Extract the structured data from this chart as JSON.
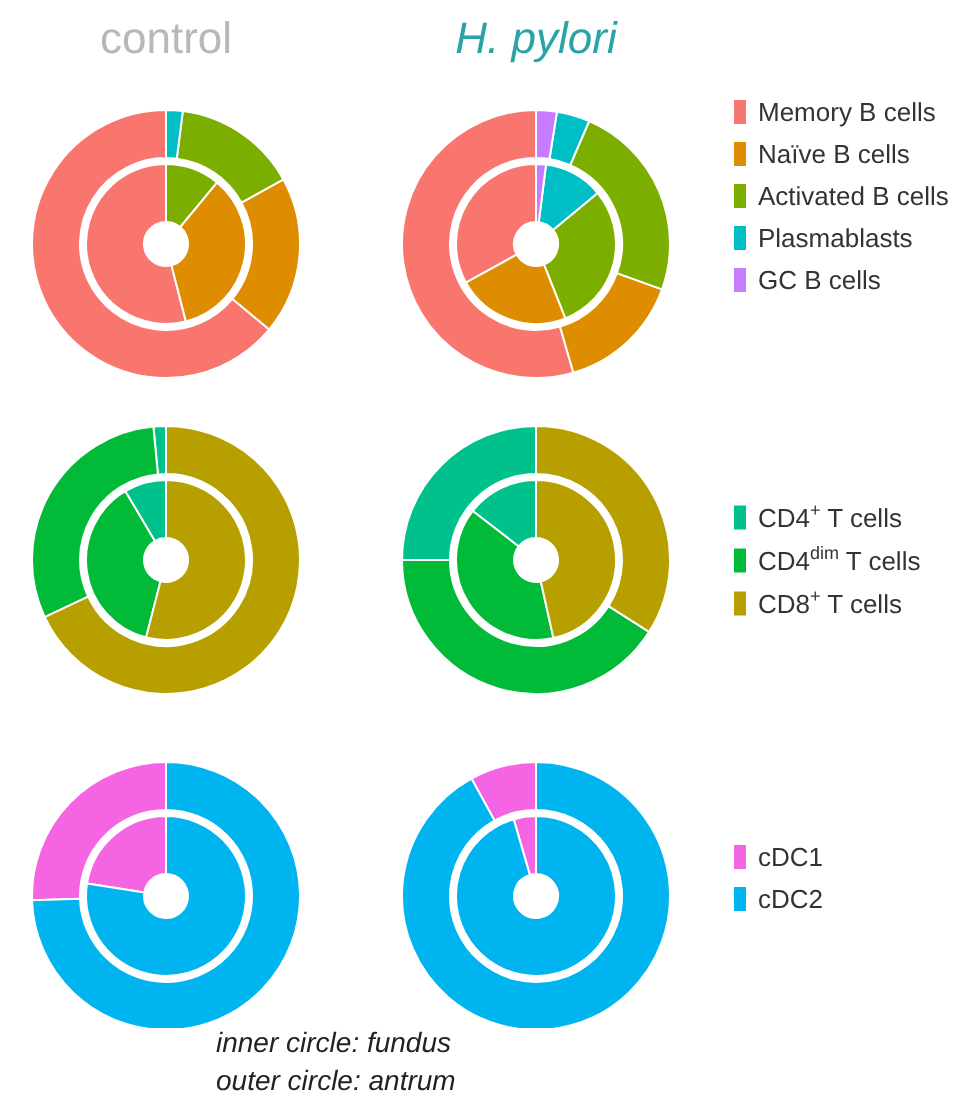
{
  "chart_data": [
    {
      "type": "donut",
      "categories": [
        "Memory B cells",
        "Naïve B cells",
        "Activated B cells",
        "Plasmablasts",
        "GC B cells"
      ],
      "colors": [
        "#f8766d",
        "#de8c00",
        "#7cae00",
        "#00bfc4",
        "#c77cff"
      ],
      "legend": "right",
      "annotations": [
        "control",
        "H. pylori"
      ],
      "series": [
        {
          "values": [
            54,
            35,
            11,
            0,
            0
          ]
        },
        {
          "values": [
            64,
            19,
            15,
            2,
            0
          ]
        },
        {
          "values": [
            33,
            23,
            30,
            12,
            2
          ]
        },
        {
          "values": [
            54.5,
            15,
            24,
            4,
            2.5
          ]
        }
      ]
    },
    {
      "type": "donut",
      "categories": [
        "CD4$^{+}$ T cells",
        "CD4$^{dim}$ T cells",
        "CD8$^{+}$ T cells"
      ],
      "colors": [
        "#00c08b",
        "#00ba38",
        "#b79f00"
      ],
      "legend": "right",
      "series": [
        {
          "values": [
            8.5,
            37.5,
            54
          ]
        },
        {
          "values": [
            1.5,
            30.5,
            68
          ]
        },
        {
          "values": [
            14.5,
            39,
            46.5
          ]
        },
        {
          "values": [
            25,
            41,
            34
          ]
        }
      ]
    },
    {
      "type": "donut",
      "categories": [
        "cDC1",
        "cDC2"
      ],
      "colors": [
        "#f564e3",
        "#00b4ef"
      ],
      "legend": "right",
      "annotations": [
        "inner circle: fundus",
        "outer circle: antrum"
      ],
      "series": [
        {
          "values": [
            22.5,
            77.5
          ]
        },
        {
          "values": [
            25.5,
            74.5
          ]
        },
        {
          "values": [
            4.5,
            95.5
          ]
        },
        {
          "values": [
            8,
            92
          ]
        }
      ]
    }
  ]
}
